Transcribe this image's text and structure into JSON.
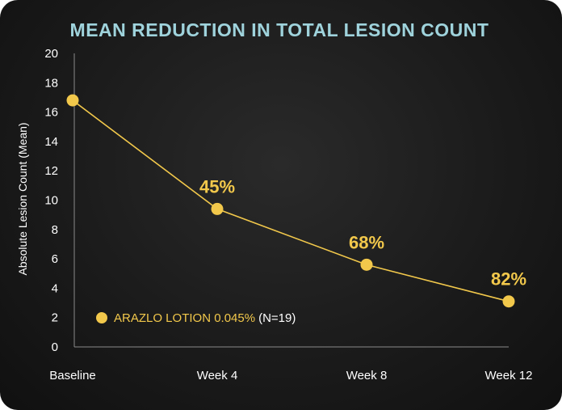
{
  "chart_data": {
    "type": "line",
    "title": "MEAN REDUCTION IN TOTAL LESION COUNT",
    "ylabel": "Absolute Lesion Count (Mean)",
    "xlabel": "",
    "categories": [
      "Baseline",
      "Week 4",
      "Week 8",
      "Week 12"
    ],
    "ylim": [
      0,
      20
    ],
    "yticks": [
      "0",
      "2",
      "4",
      "6",
      "8",
      "10",
      "12",
      "14",
      "16",
      "18",
      "20"
    ],
    "series": [
      {
        "name": "ARAZLO LOTION 0.045%",
        "name_suffix": "(N=19)",
        "values": [
          16.8,
          9.4,
          5.6,
          3.1
        ],
        "labels": [
          "",
          "45%",
          "68%",
          "82%"
        ],
        "color": "#f2c84b"
      }
    ],
    "grid": false,
    "legend_position": "bottom-left"
  }
}
